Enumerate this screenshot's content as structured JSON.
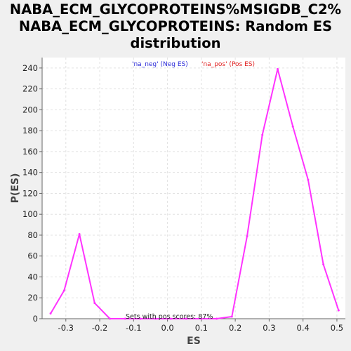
{
  "chart_data": {
    "type": "line",
    "title": [
      "NABA_ECM_GLYCOPROTEINS%MSIGDB_C2%",
      "NABA_ECM_GLYCOPROTEINS: Random ES",
      "distribution"
    ],
    "xlabel": "ES",
    "ylabel": "P(ES)",
    "xlim": [
      -0.37,
      0.525
    ],
    "ylim": [
      0,
      250
    ],
    "xticks": [
      "-0.3",
      "-0.2",
      "-0.1",
      "0.0",
      "0.1",
      "0.2",
      "0.3",
      "0.4",
      "0.5"
    ],
    "xtick_values": [
      -0.3,
      -0.2,
      -0.1,
      0.0,
      0.1,
      0.2,
      0.3,
      0.4,
      0.5
    ],
    "yticks": [
      "0",
      "20",
      "40",
      "60",
      "80",
      "100",
      "120",
      "140",
      "160",
      "180",
      "200",
      "220",
      "240"
    ],
    "ytick_values": [
      0,
      20,
      40,
      60,
      80,
      100,
      120,
      140,
      160,
      180,
      200,
      220,
      240
    ],
    "legend": [
      {
        "label": "'na_neg' (Neg ES)",
        "color": "#2a2ad8"
      },
      {
        "label": "'na_pos' (Pos ES)",
        "color": "#e02020"
      }
    ],
    "annotation": "Sets with pos scores: 87%",
    "series": [
      {
        "name": "ES distribution",
        "color": "#ff33ff",
        "x": [
          -0.345,
          -0.305,
          -0.26,
          -0.215,
          -0.17,
          -0.125,
          -0.08,
          -0.035,
          0.01,
          0.055,
          0.1,
          0.145,
          0.19,
          0.235,
          0.28,
          0.325,
          0.37,
          0.415,
          0.46,
          0.505
        ],
        "y": [
          5,
          27,
          81,
          15,
          0,
          0,
          0,
          0,
          0,
          0,
          0,
          0,
          2,
          79,
          176,
          239,
          184,
          133,
          52,
          8
        ]
      }
    ]
  }
}
